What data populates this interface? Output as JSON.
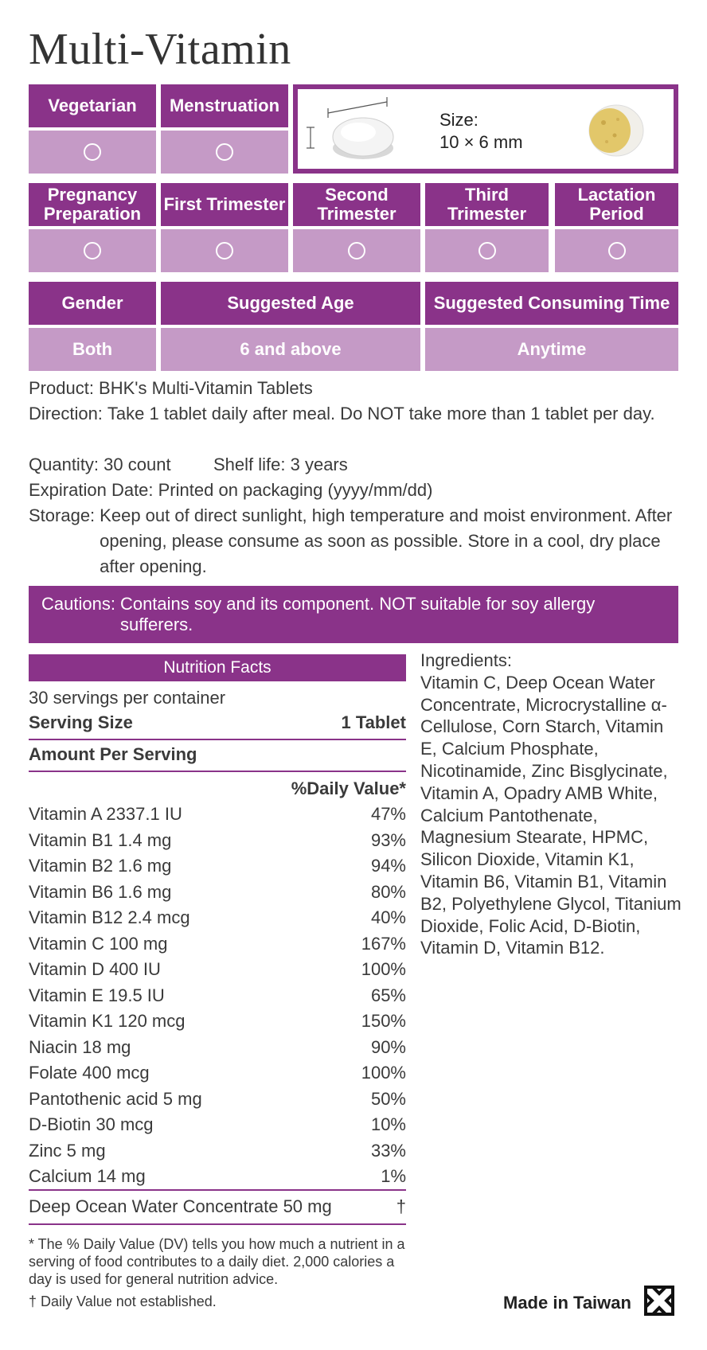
{
  "title": "Multi-Vitamin",
  "suitability_row1": [
    {
      "label": "Vegetarian",
      "mark": "○"
    },
    {
      "label": "Menstruation",
      "mark": "○"
    }
  ],
  "size": {
    "label": "Size:",
    "value": "10 × 6 mm"
  },
  "suitability_row2": [
    {
      "label": "Pregnancy Preparation",
      "mark": "○"
    },
    {
      "label": "First Trimester",
      "mark": "○"
    },
    {
      "label": "Second Trimester",
      "mark": "○"
    },
    {
      "label": "Third Trimester",
      "mark": "○"
    },
    {
      "label": "Lactation Period",
      "mark": "○"
    }
  ],
  "usage": {
    "gender_label": "Gender",
    "gender_value": "Both",
    "age_label": "Suggested Age",
    "age_value": "6 and above",
    "time_label": "Suggested Consuming Time",
    "time_value": "Anytime"
  },
  "info": {
    "product": "Product: BHK's Multi-Vitamin Tablets",
    "direction_label": "Direction:",
    "direction": "Take 1 tablet daily after meal. Do NOT take more than 1 tablet per day.",
    "quantity": "Quantity: 30 count",
    "shelf_life": "Shelf life: 3 years",
    "expiration": "Expiration Date: Printed on packaging (yyyy/mm/dd)",
    "storage_label": "Storage:",
    "storage": "Keep out of direct sunlight, high temperature and moist environment. After opening, please consume as soon as possible. Store in a cool, dry place after opening."
  },
  "caution": {
    "label": "Cautions:",
    "text": "Contains soy and its component. NOT suitable for soy allergy sufferers."
  },
  "nutrition": {
    "header": "Nutrition Facts",
    "servings": "30 servings per container",
    "serving_size_label": "Serving Size",
    "serving_size_value": "1 Tablet",
    "amount_label": "Amount Per Serving",
    "dv_label": "%Daily Value*",
    "rows": [
      {
        "name": "Vitamin A 2337.1 IU",
        "dv": "47%"
      },
      {
        "name": "Vitamin B1 1.4 mg",
        "dv": "93%"
      },
      {
        "name": "Vitamin B2 1.6 mg",
        "dv": "94%"
      },
      {
        "name": "Vitamin B6 1.6 mg",
        "dv": "80%"
      },
      {
        "name": "Vitamin B12 2.4 mcg",
        "dv": "40%"
      },
      {
        "name": "Vitamin C 100 mg",
        "dv": "167%"
      },
      {
        "name": "Vitamin D 400 IU",
        "dv": "100%"
      },
      {
        "name": "Vitamin E 19.5 IU",
        "dv": "65%"
      },
      {
        "name": "Vitamin K1 120 mcg",
        "dv": "150%"
      },
      {
        "name": "Niacin 18 mg",
        "dv": "90%"
      },
      {
        "name": "Folate 400 mcg",
        "dv": "100%"
      },
      {
        "name": "Pantothenic acid  5 mg",
        "dv": "50%"
      },
      {
        "name": "D-Biotin 30 mcg",
        "dv": "10%"
      },
      {
        "name": "Zinc 5 mg",
        "dv": "33%"
      },
      {
        "name": "Calcium 14 mg",
        "dv": "1%"
      }
    ],
    "extra_name": "Deep Ocean Water Concentrate 50 mg",
    "extra_dv": "†",
    "footnote": "* The % Daily Value (DV) tells you how much a nutrient in a serving of food contributes to a daily diet. 2,000 calories a day is used for general nutrition advice.",
    "dagger_note": "† Daily Value not established."
  },
  "ingredients": {
    "label": "Ingredients:",
    "text": "Vitamin C, Deep Ocean Water Concentrate, Microcrystalline α-Cellulose, Corn Starch, Vitamin E, Calcium Phosphate, Nicotinamide, Zinc Bisglycinate, Vitamin A, Opadry AMB White, Calcium Pantothenate, Magnesium Stearate, HPMC, Silicon Dioxide, Vitamin K1, Vitamin B6, Vitamin B1, Vitamin B2, Polyethylene Glycol, Titanium Dioxide, Folic Acid, D-Biotin, Vitamin D, Vitamin B12."
  },
  "origin": "Made in Taiwan",
  "colors": {
    "primary": "#8a3389",
    "light": "#c59ac6"
  }
}
